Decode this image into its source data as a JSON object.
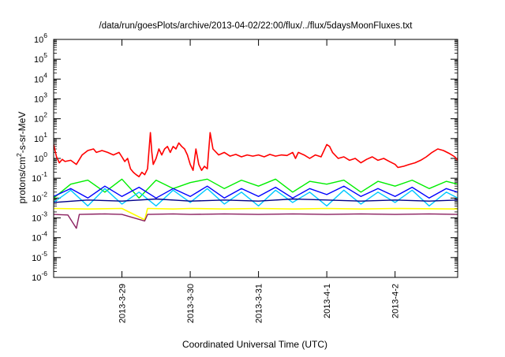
{
  "chart_data": {
    "type": "line",
    "title": "/data/run/goesPlots/archive/2013-04-02/22:00/flux/../flux/5daysMoonFluxes.txt",
    "xlabel": "Coordinated Universal Time (UTC)",
    "ylabel": "protons/cm²-s-sr-MeV",
    "ylabel_parts": {
      "pre": "protons/cm",
      "sup": "2",
      "post": "-s-sr-MeV"
    },
    "y_scale": "log",
    "ylim": [
      1e-06,
      1000000.0
    ],
    "y_ticks": [
      {
        "base": "10",
        "exp": "-6",
        "value": 1e-06
      },
      {
        "base": "10",
        "exp": "-5",
        "value": 1e-05
      },
      {
        "base": "10",
        "exp": "-4",
        "value": 0.0001
      },
      {
        "base": "10",
        "exp": "-3",
        "value": 0.001
      },
      {
        "base": "10",
        "exp": "-2",
        "value": 0.01
      },
      {
        "base": "10",
        "exp": "-1",
        "value": 0.1
      },
      {
        "base": "10",
        "exp": "0",
        "value": 1
      },
      {
        "base": "10",
        "exp": "1",
        "value": 10
      },
      {
        "base": "10",
        "exp": "2",
        "value": 100
      },
      {
        "base": "10",
        "exp": "3",
        "value": 1000
      },
      {
        "base": "10",
        "exp": "4",
        "value": 10000
      },
      {
        "base": "10",
        "exp": "5",
        "value": 100000
      },
      {
        "base": "10",
        "exp": "6",
        "value": 1000000
      }
    ],
    "xlim": [
      "2013-03-28 00:00",
      "2013-04-02 22:00"
    ],
    "x_ticks": [
      "2013-3-29",
      "2013-3-30",
      "2013-3-31",
      "2013-4-1",
      "2013-4-2"
    ],
    "grid": false,
    "legend": "none",
    "series": [
      {
        "color": "#ff0000",
        "width": 1.6,
        "points": [
          [
            "2013-03-28 00:00",
            5.0
          ],
          [
            "2013-03-28 01:00",
            1.2
          ],
          [
            "2013-03-28 02:00",
            0.6
          ],
          [
            "2013-03-28 03:00",
            0.9
          ],
          [
            "2013-03-28 04:00",
            0.7
          ],
          [
            "2013-03-28 06:00",
            0.8
          ],
          [
            "2013-03-28 08:00",
            0.5
          ],
          [
            "2013-03-28 10:00",
            1.5
          ],
          [
            "2013-03-28 12:00",
            2.5
          ],
          [
            "2013-03-28 14:00",
            3.0
          ],
          [
            "2013-03-28 15:00",
            2.0
          ],
          [
            "2013-03-28 17:00",
            2.5
          ],
          [
            "2013-03-28 19:00",
            2.0
          ],
          [
            "2013-03-28 21:00",
            1.5
          ],
          [
            "2013-03-28 23:00",
            2.0
          ],
          [
            "2013-03-29 00:00",
            1.2
          ],
          [
            "2013-03-29 01:00",
            0.7
          ],
          [
            "2013-03-29 02:00",
            1.0
          ],
          [
            "2013-03-29 03:00",
            0.3
          ],
          [
            "2013-03-29 04:00",
            0.2
          ],
          [
            "2013-03-29 05:00",
            0.15
          ],
          [
            "2013-03-29 06:00",
            0.12
          ],
          [
            "2013-03-29 07:00",
            0.2
          ],
          [
            "2013-03-29 08:00",
            0.15
          ],
          [
            "2013-03-29 09:00",
            0.3
          ],
          [
            "2013-03-29 10:00",
            20.0
          ],
          [
            "2013-03-29 10:30",
            2.0
          ],
          [
            "2013-03-29 11:00",
            0.5
          ],
          [
            "2013-03-29 12:00",
            1.0
          ],
          [
            "2013-03-29 13:00",
            3.0
          ],
          [
            "2013-03-29 14:00",
            1.5
          ],
          [
            "2013-03-29 15:00",
            3.0
          ],
          [
            "2013-03-29 16:00",
            4.0
          ],
          [
            "2013-03-29 17:00",
            2.0
          ],
          [
            "2013-03-29 18:00",
            4.0
          ],
          [
            "2013-03-29 19:00",
            3.0
          ],
          [
            "2013-03-29 20:00",
            6.0
          ],
          [
            "2013-03-29 21:00",
            4.0
          ],
          [
            "2013-03-29 22:00",
            3.0
          ],
          [
            "2013-03-29 23:00",
            1.5
          ],
          [
            "2013-03-30 00:00",
            0.5
          ],
          [
            "2013-03-30 01:00",
            0.25
          ],
          [
            "2013-03-30 02:00",
            3.0
          ],
          [
            "2013-03-30 03:00",
            0.5
          ],
          [
            "2013-03-30 04:00",
            0.25
          ],
          [
            "2013-03-30 05:00",
            0.4
          ],
          [
            "2013-03-30 06:00",
            0.3
          ],
          [
            "2013-03-30 07:00",
            20.0
          ],
          [
            "2013-03-30 08:00",
            3.0
          ],
          [
            "2013-03-30 10:00",
            1.5
          ],
          [
            "2013-03-30 12:00",
            2.0
          ],
          [
            "2013-03-30 14:00",
            1.3
          ],
          [
            "2013-03-30 16:00",
            1.6
          ],
          [
            "2013-03-30 18:00",
            1.2
          ],
          [
            "2013-03-30 20:00",
            1.5
          ],
          [
            "2013-03-30 22:00",
            1.3
          ],
          [
            "2013-03-31 00:00",
            1.5
          ],
          [
            "2013-03-31 02:00",
            1.2
          ],
          [
            "2013-03-31 04:00",
            1.6
          ],
          [
            "2013-03-31 06:00",
            1.3
          ],
          [
            "2013-03-31 08:00",
            1.5
          ],
          [
            "2013-03-31 10:00",
            1.4
          ],
          [
            "2013-03-31 12:00",
            2.0
          ],
          [
            "2013-03-31 13:00",
            1.0
          ],
          [
            "2013-03-31 14:00",
            2.0
          ],
          [
            "2013-03-31 16:00",
            1.5
          ],
          [
            "2013-03-31 18:00",
            1.0
          ],
          [
            "2013-03-31 20:00",
            1.5
          ],
          [
            "2013-03-31 22:00",
            1.2
          ],
          [
            "2013-04-01 00:00",
            5.0
          ],
          [
            "2013-04-01 01:00",
            4.0
          ],
          [
            "2013-04-01 02:00",
            2.0
          ],
          [
            "2013-04-01 04:00",
            1.0
          ],
          [
            "2013-04-01 06:00",
            1.2
          ],
          [
            "2013-04-01 08:00",
            0.8
          ],
          [
            "2013-04-01 10:00",
            1.0
          ],
          [
            "2013-04-01 12:00",
            0.6
          ],
          [
            "2013-04-01 14:00",
            0.9
          ],
          [
            "2013-04-01 16:00",
            1.2
          ],
          [
            "2013-04-01 18:00",
            0.8
          ],
          [
            "2013-04-01 20:00",
            1.0
          ],
          [
            "2013-04-01 22:00",
            0.7
          ],
          [
            "2013-04-02 00:00",
            0.5
          ],
          [
            "2013-04-02 01:00",
            0.35
          ],
          [
            "2013-04-02 03:00",
            0.4
          ],
          [
            "2013-04-02 05:00",
            0.5
          ],
          [
            "2013-04-02 07:00",
            0.6
          ],
          [
            "2013-04-02 09:00",
            0.8
          ],
          [
            "2013-04-02 11:00",
            1.2
          ],
          [
            "2013-04-02 13:00",
            2.0
          ],
          [
            "2013-04-02 15:00",
            3.0
          ],
          [
            "2013-04-02 17:00",
            2.5
          ],
          [
            "2013-04-02 19:00",
            1.8
          ],
          [
            "2013-04-02 21:00",
            1.2
          ],
          [
            "2013-04-02 22:00",
            0.8
          ]
        ]
      },
      {
        "color": "#00ee00",
        "width": 1.4,
        "points": [
          [
            "2013-03-28 00:00",
            0.01
          ],
          [
            "2013-03-28 06:00",
            0.05
          ],
          [
            "2013-03-28 12:00",
            0.08
          ],
          [
            "2013-03-28 18:00",
            0.02
          ],
          [
            "2013-03-29 00:00",
            0.09
          ],
          [
            "2013-03-29 06:00",
            0.01
          ],
          [
            "2013-03-29 12:00",
            0.08
          ],
          [
            "2013-03-29 18:00",
            0.03
          ],
          [
            "2013-03-30 00:00",
            0.06
          ],
          [
            "2013-03-30 06:00",
            0.09
          ],
          [
            "2013-03-30 12:00",
            0.03
          ],
          [
            "2013-03-30 18:00",
            0.08
          ],
          [
            "2013-03-31 00:00",
            0.04
          ],
          [
            "2013-03-31 06:00",
            0.09
          ],
          [
            "2013-03-31 12:00",
            0.02
          ],
          [
            "2013-03-31 18:00",
            0.07
          ],
          [
            "2013-04-01 00:00",
            0.05
          ],
          [
            "2013-04-01 06:00",
            0.08
          ],
          [
            "2013-04-01 12:00",
            0.02
          ],
          [
            "2013-04-01 18:00",
            0.07
          ],
          [
            "2013-04-02 00:00",
            0.04
          ],
          [
            "2013-04-02 06:00",
            0.08
          ],
          [
            "2013-04-02 12:00",
            0.03
          ],
          [
            "2013-04-02 18:00",
            0.07
          ],
          [
            "2013-04-02 22:00",
            0.05
          ]
        ]
      },
      {
        "color": "#00c8ff",
        "width": 1.4,
        "points": [
          [
            "2013-03-28 00:00",
            0.006
          ],
          [
            "2013-03-28 06:00",
            0.025
          ],
          [
            "2013-03-28 12:00",
            0.004
          ],
          [
            "2013-03-28 18:00",
            0.03
          ],
          [
            "2013-03-29 00:00",
            0.005
          ],
          [
            "2013-03-29 06:00",
            0.02
          ],
          [
            "2013-03-29 12:00",
            0.004
          ],
          [
            "2013-03-29 18:00",
            0.025
          ],
          [
            "2013-03-30 00:00",
            0.006
          ],
          [
            "2013-03-30 06:00",
            0.03
          ],
          [
            "2013-03-30 12:00",
            0.005
          ],
          [
            "2013-03-30 18:00",
            0.02
          ],
          [
            "2013-03-31 00:00",
            0.004
          ],
          [
            "2013-03-31 06:00",
            0.025
          ],
          [
            "2013-03-31 12:00",
            0.006
          ],
          [
            "2013-03-31 18:00",
            0.02
          ],
          [
            "2013-04-01 00:00",
            0.004
          ],
          [
            "2013-04-01 06:00",
            0.025
          ],
          [
            "2013-04-01 12:00",
            0.005
          ],
          [
            "2013-04-01 18:00",
            0.02
          ],
          [
            "2013-04-02 00:00",
            0.006
          ],
          [
            "2013-04-02 06:00",
            0.025
          ],
          [
            "2013-04-02 12:00",
            0.004
          ],
          [
            "2013-04-02 18:00",
            0.02
          ],
          [
            "2013-04-02 22:00",
            0.01
          ]
        ]
      },
      {
        "color": "#0000ff",
        "width": 1.4,
        "points": [
          [
            "2013-03-28 00:00",
            0.012
          ],
          [
            "2013-03-28 06:00",
            0.03
          ],
          [
            "2013-03-28 12:00",
            0.01
          ],
          [
            "2013-03-28 18:00",
            0.04
          ],
          [
            "2013-03-29 00:00",
            0.012
          ],
          [
            "2013-03-29 06:00",
            0.035
          ],
          [
            "2013-03-29 12:00",
            0.01
          ],
          [
            "2013-03-29 18:00",
            0.03
          ],
          [
            "2013-03-30 00:00",
            0.012
          ],
          [
            "2013-03-30 06:00",
            0.04
          ],
          [
            "2013-03-30 12:00",
            0.01
          ],
          [
            "2013-03-30 18:00",
            0.03
          ],
          [
            "2013-03-31 00:00",
            0.012
          ],
          [
            "2013-03-31 06:00",
            0.035
          ],
          [
            "2013-03-31 12:00",
            0.01
          ],
          [
            "2013-03-31 18:00",
            0.03
          ],
          [
            "2013-04-01 00:00",
            0.015
          ],
          [
            "2013-04-01 06:00",
            0.04
          ],
          [
            "2013-04-01 12:00",
            0.012
          ],
          [
            "2013-04-01 18:00",
            0.03
          ],
          [
            "2013-04-02 00:00",
            0.012
          ],
          [
            "2013-04-02 06:00",
            0.035
          ],
          [
            "2013-04-02 12:00",
            0.01
          ],
          [
            "2013-04-02 18:00",
            0.03
          ],
          [
            "2013-04-02 22:00",
            0.02
          ]
        ]
      },
      {
        "color": "#00008b",
        "width": 1.4,
        "points": [
          [
            "2013-03-28 00:00",
            0.006
          ],
          [
            "2013-03-28 12:00",
            0.008
          ],
          [
            "2013-03-29 00:00",
            0.007
          ],
          [
            "2013-03-29 12:00",
            0.009
          ],
          [
            "2013-03-30 00:00",
            0.007
          ],
          [
            "2013-03-30 12:00",
            0.008
          ],
          [
            "2013-03-31 00:00",
            0.007
          ],
          [
            "2013-03-31 12:00",
            0.009
          ],
          [
            "2013-04-01 00:00",
            0.008
          ],
          [
            "2013-04-01 12:00",
            0.007
          ],
          [
            "2013-04-02 00:00",
            0.008
          ],
          [
            "2013-04-02 12:00",
            0.007
          ],
          [
            "2013-04-02 22:00",
            0.008
          ]
        ]
      },
      {
        "color": "#ffff00",
        "width": 1.6,
        "points": [
          [
            "2013-03-28 00:00",
            0.003
          ],
          [
            "2013-03-28 12:00",
            0.0028
          ],
          [
            "2013-03-29 00:00",
            0.003
          ],
          [
            "2013-03-29 08:00",
            0.0008
          ],
          [
            "2013-03-29 09:00",
            0.003
          ],
          [
            "2013-03-29 18:00",
            0.0028
          ],
          [
            "2013-03-30 00:00",
            0.003
          ],
          [
            "2013-03-30 12:00",
            0.0028
          ],
          [
            "2013-03-31 00:00",
            0.003
          ],
          [
            "2013-03-31 12:00",
            0.0028
          ],
          [
            "2013-04-01 00:00",
            0.003
          ],
          [
            "2013-04-01 12:00",
            0.0028
          ],
          [
            "2013-04-02 00:00",
            0.003
          ],
          [
            "2013-04-02 22:00",
            0.0028
          ]
        ]
      },
      {
        "color": "#8b2060",
        "width": 1.4,
        "points": [
          [
            "2013-03-28 00:00",
            0.0015
          ],
          [
            "2013-03-28 05:00",
            0.0014
          ],
          [
            "2013-03-28 08:00",
            0.0003
          ],
          [
            "2013-03-28 09:00",
            0.0015
          ],
          [
            "2013-03-28 18:00",
            0.0016
          ],
          [
            "2013-03-29 00:00",
            0.0015
          ],
          [
            "2013-03-29 08:00",
            0.0007
          ],
          [
            "2013-03-29 09:00",
            0.0015
          ],
          [
            "2013-03-29 18:00",
            0.0016
          ],
          [
            "2013-03-30 00:00",
            0.0015
          ],
          [
            "2013-03-30 12:00",
            0.0016
          ],
          [
            "2013-03-31 00:00",
            0.0015
          ],
          [
            "2013-03-31 12:00",
            0.0016
          ],
          [
            "2013-04-01 00:00",
            0.0015
          ],
          [
            "2013-04-01 12:00",
            0.0016
          ],
          [
            "2013-04-02 00:00",
            0.0015
          ],
          [
            "2013-04-02 12:00",
            0.0016
          ],
          [
            "2013-04-02 22:00",
            0.0015
          ]
        ]
      }
    ]
  }
}
